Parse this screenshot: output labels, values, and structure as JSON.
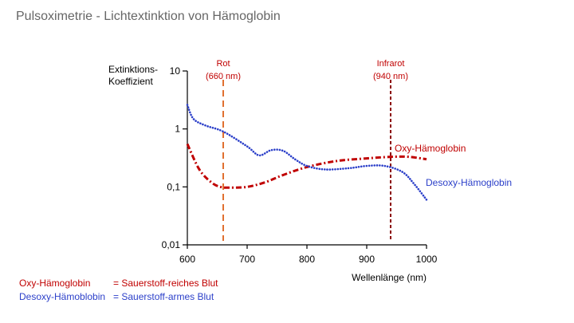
{
  "title": "Pulsoximetrie - Lichtextinktion von Hämoglobin",
  "colors": {
    "oxy": "#c00000",
    "deoxy": "#2b3fc9",
    "red_line": "#e07030",
    "ir_line": "#8b0000",
    "axis": "#000000"
  },
  "legend": {
    "oxy_name": "Oxy-Hämoglobin",
    "oxy_desc": "= Sauerstoff-reiches Blut",
    "deoxy_name": "Desoxy-Hämoblobin",
    "deoxy_desc": "= Sauerstoff-armes Blut"
  },
  "chart_data": {
    "type": "line",
    "ylabel_line1": "Extinktions-",
    "ylabel_line2": "Koeffizient",
    "xlabel": "Wellenlänge (nm)",
    "xlim": [
      600,
      1000
    ],
    "ylim": [
      0.01,
      10
    ],
    "y_scale": "log",
    "x_ticks": [
      600,
      700,
      800,
      900,
      1000
    ],
    "x_tick_labels": [
      "600",
      "700",
      "800",
      "900",
      "1000"
    ],
    "y_ticks": [
      0.01,
      0.1,
      1,
      10
    ],
    "y_tick_labels": [
      "0,01",
      "0,1",
      "1",
      "10"
    ],
    "series": [
      {
        "name": "Oxy-Hämoglobin",
        "style": "dash-dot",
        "x": [
          600,
          620,
          640,
          655,
          670,
          700,
          730,
          760,
          800,
          850,
          900,
          940,
          970,
          1000
        ],
        "y": [
          0.55,
          0.2,
          0.12,
          0.1,
          0.097,
          0.1,
          0.12,
          0.16,
          0.22,
          0.28,
          0.31,
          0.33,
          0.33,
          0.3
        ]
      },
      {
        "name": "Desoxy-Hämoglobin",
        "style": "dotted",
        "x": [
          600,
          610,
          630,
          660,
          700,
          720,
          740,
          760,
          780,
          800,
          830,
          870,
          900,
          930,
          960,
          980,
          1000
        ],
        "y": [
          2.6,
          1.5,
          1.15,
          0.9,
          0.5,
          0.35,
          0.43,
          0.42,
          0.3,
          0.23,
          0.2,
          0.21,
          0.23,
          0.23,
          0.18,
          0.11,
          0.06
        ]
      }
    ],
    "markers": [
      {
        "label": "Rot",
        "sublabel": "(660 nm)",
        "x": 660
      },
      {
        "label": "Infrarot",
        "sublabel": "(940 nm)",
        "x": 940
      }
    ]
  }
}
